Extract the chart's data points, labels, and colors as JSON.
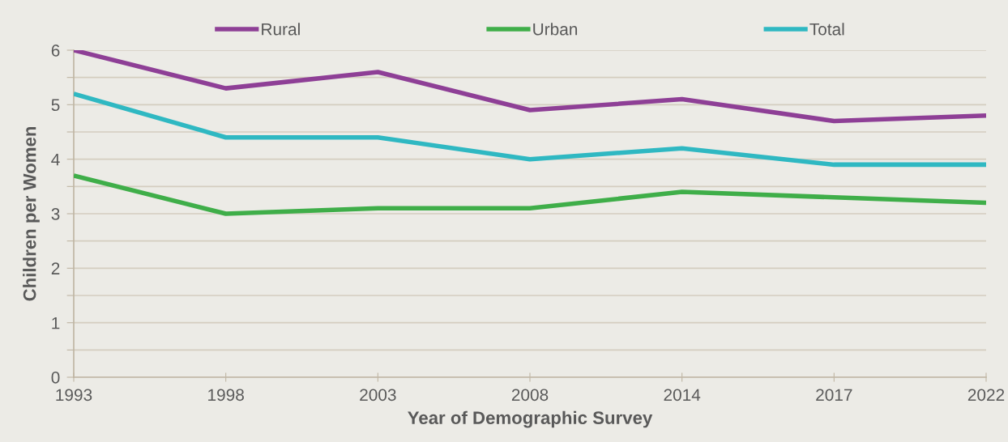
{
  "chart_data": {
    "type": "line",
    "xlabel": "Year of Demographic Survey",
    "ylabel": "Children per Women",
    "categories": [
      "1993",
      "1998",
      "2003",
      "2008",
      "2014",
      "2017",
      "2022"
    ],
    "series": [
      {
        "name": "Rural",
        "color": "#8e3f96",
        "values": [
          6.0,
          5.3,
          5.6,
          4.9,
          5.1,
          4.7,
          4.8
        ]
      },
      {
        "name": "Urban",
        "color": "#3fae49",
        "values": [
          3.7,
          3.0,
          3.1,
          3.1,
          3.4,
          3.3,
          3.2
        ]
      },
      {
        "name": "Total",
        "color": "#2fb8c2",
        "values": [
          5.2,
          4.4,
          4.4,
          4.0,
          4.2,
          3.9,
          3.9
        ]
      }
    ],
    "ylim": [
      0,
      6
    ],
    "yticks": [
      0,
      {
        "value": 0.5,
        "label": null
      },
      1,
      {
        "value": 1.5,
        "label": null
      },
      2,
      {
        "value": 2.5,
        "label": null
      },
      3,
      {
        "value": 3.5,
        "label": null
      },
      4,
      {
        "value": 4.5,
        "label": null
      },
      5,
      {
        "value": 5.5,
        "label": null
      },
      6
    ],
    "grid": "y",
    "legend": "top",
    "marker": "none",
    "line_style": "solid"
  }
}
